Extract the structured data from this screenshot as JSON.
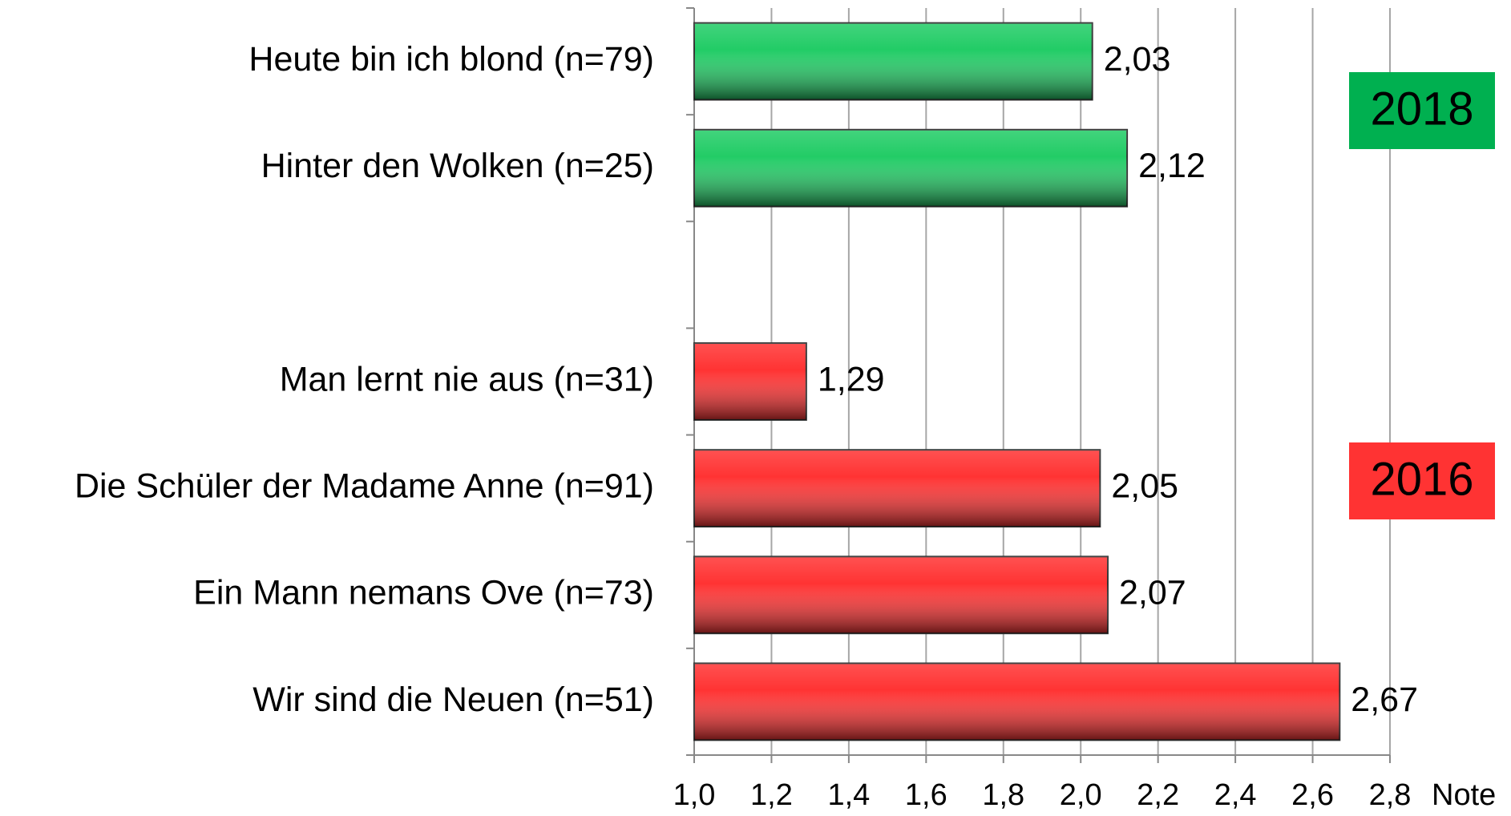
{
  "chart_data": {
    "type": "hbar",
    "categories": [
      "Heute bin ich blond (n=79)",
      "Hinter den Wolken (n=25)",
      null,
      "Man lernt nie aus (n=31)",
      "Die Schüler der Madame Anne (n=91)",
      "Ein Mann nemans Ove (n=73)",
      "Wir sind die Neuen (n=51)"
    ],
    "values": [
      2.03,
      2.12,
      null,
      1.29,
      2.05,
      2.07,
      2.67
    ],
    "value_labels": [
      "2,03",
      "2,12",
      null,
      "1,29",
      "2,05",
      "2,07",
      "2,67"
    ],
    "colors": [
      "#22cc66",
      "#22cc66",
      null,
      "#ff3333",
      "#ff3333",
      "#ff3333",
      "#ff3333"
    ],
    "xlim": [
      1.0,
      2.8
    ],
    "xticks": [
      {
        "value": 1.0,
        "label": "1,0"
      },
      {
        "value": 1.2,
        "label": "1,2"
      },
      {
        "value": 1.4,
        "label": "1,4"
      },
      {
        "value": 1.6,
        "label": "1,6"
      },
      {
        "value": 1.8,
        "label": "1,8"
      },
      {
        "value": 2.0,
        "label": "2,0"
      },
      {
        "value": 2.2,
        "label": "2,2"
      },
      {
        "value": 2.4,
        "label": "2,4"
      },
      {
        "value": 2.6,
        "label": "2,6"
      },
      {
        "value": 2.8,
        "label": "2,8"
      }
    ],
    "x_label": "Note",
    "grid": true,
    "annotations": [
      {
        "text": "2018",
        "color": "#00b050"
      },
      {
        "text": "2016",
        "color": "#ff3333"
      }
    ]
  }
}
